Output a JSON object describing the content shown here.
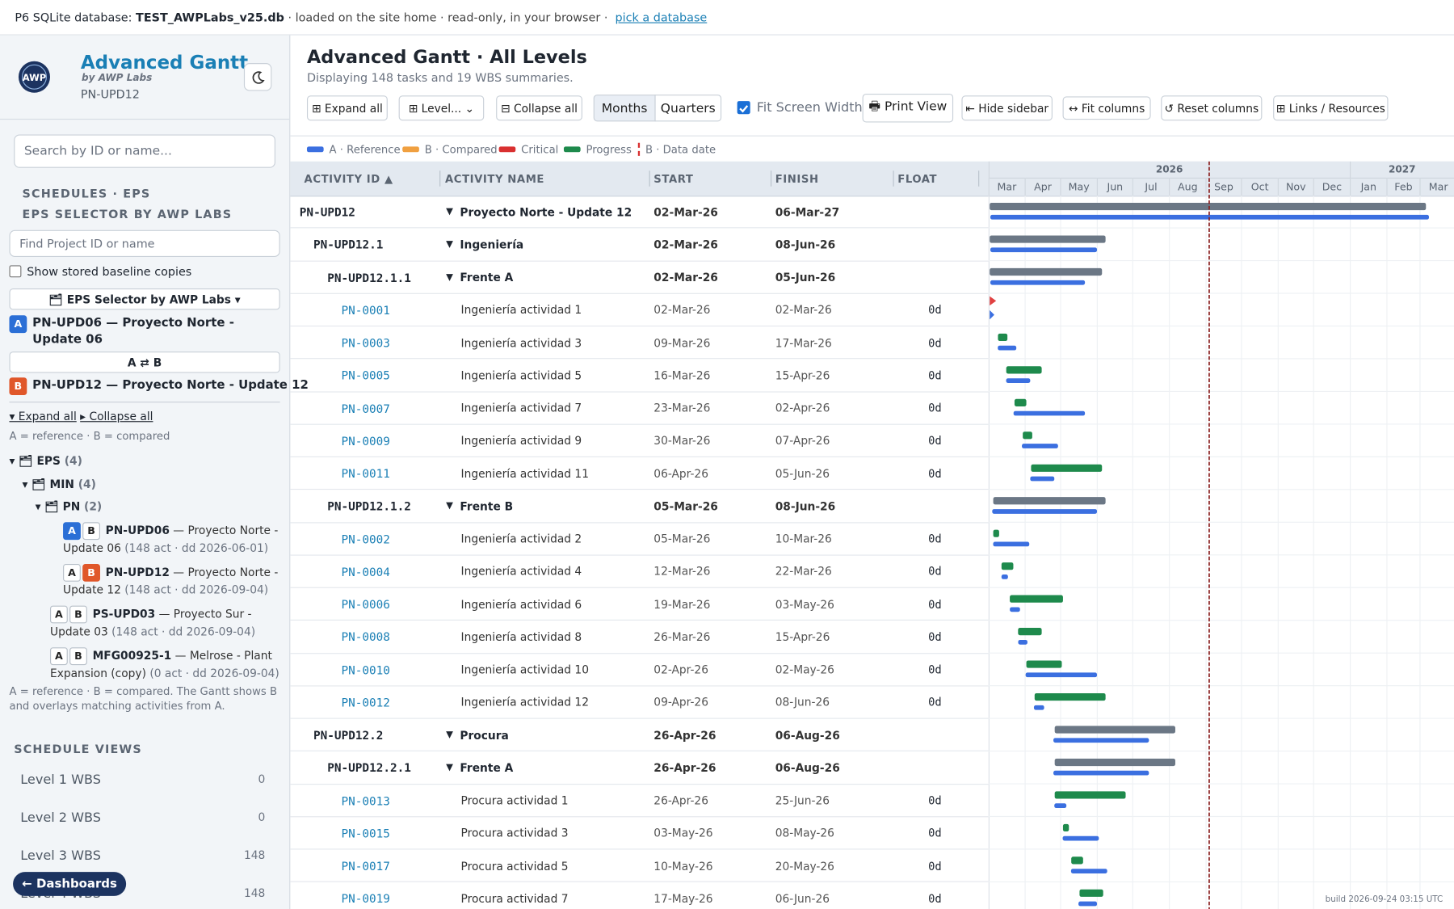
{
  "top_bar": {
    "prefix": "P6 SQLite database:",
    "db": "TEST_AWPLabs_v25.db",
    "suffix": "· loaded on the site home · read-only, in your browser ·",
    "link": "pick a database"
  },
  "sidebar": {
    "logo": "AWP",
    "title": "Advanced Gantt",
    "byline": "by AWP Labs",
    "project": "PN-UPD12",
    "search_placeholder": "Search by ID or name...",
    "section_schedules": "SCHEDULES · EPS",
    "section_selector": "EPS SELECTOR BY AWP LABS",
    "find_placeholder": "Find Project ID or name",
    "show_baseline": "Show stored baseline copies",
    "eps_button": "🗂 EPS Selector by AWP Labs ▾",
    "a_badge": "A",
    "a_text": "PN-UPD06 — Proyecto Norte - Update 06",
    "swap": "A ⇄ B",
    "b_badge": "B",
    "b_text": "PN-UPD12 — Proyecto Norte - Update 12",
    "expand_all": "▾ Expand all",
    "collapse_all": "▸ Collapse all",
    "ab_note": "A = reference · B = compared",
    "tree": [
      {
        "label": "▾ 🗂 EPS",
        "count": "(4)"
      },
      {
        "label": "▾ 🗂 MIN",
        "count": "(4)"
      },
      {
        "label": "▾ 🗂 PN",
        "count": "(2)"
      }
    ],
    "projects": [
      {
        "id": "PN-UPD06",
        "name": "— Proyecto Norte - Update 06",
        "meta": "(148 act · dd 2026-06-01)"
      },
      {
        "id": "PN-UPD12",
        "name": "— Proyecto Norte - Update 12",
        "meta": "(148 act · dd 2026-09-04)"
      },
      {
        "id": "PS-UPD03",
        "name": "— Proyecto Sur - Update 03",
        "meta": "(148 act · dd 2026-09-04)"
      },
      {
        "id": "MFG00925-1",
        "name": "— Melrose - Plant Expansion (copy)",
        "meta": "(0 act · dd 2026-09-04)"
      }
    ],
    "compare_note": "A = reference · B = compared. The Gantt shows B and overlays matching activities from A.",
    "views_title": "SCHEDULE VIEWS",
    "views": [
      {
        "label": "Level 1 WBS",
        "count": 0
      },
      {
        "label": "Level 2 WBS",
        "count": 0
      },
      {
        "label": "Level 3 WBS",
        "count": 148
      },
      {
        "label": "Level 4 WBS",
        "count": 148
      }
    ],
    "dashboards": "← Dashboards"
  },
  "main": {
    "title": "Advanced Gantt · All Levels",
    "subtitle": "Displaying 148 tasks and 19 WBS summaries.",
    "toolbar": {
      "expand_all": "⊞ Expand all",
      "level": "⊞ Level...",
      "collapse_all": "⊟ Collapse all",
      "months": "Months",
      "quarters": "Quarters",
      "fit_screen": "Fit Screen Width",
      "print": "🖶 Print View",
      "hide_sidebar": "⇤ Hide sidebar",
      "fit_columns": "↔ Fit columns",
      "reset_columns": "↺ Reset columns",
      "links": "⊞ Links / Resources"
    },
    "legend": {
      "reference": "A · Reference",
      "compared": "B · Compared",
      "critical": "Critical",
      "progress": "Progress",
      "data_date": "B · Data date"
    },
    "columns": {
      "id": "ACTIVITY ID ▲",
      "name": "ACTIVITY NAME",
      "start": "START",
      "finish": "FINISH",
      "float": "FLOAT"
    },
    "years": [
      "2026",
      "2027"
    ],
    "months": [
      "Mar",
      "Apr",
      "May",
      "Jun",
      "Jul",
      "Aug",
      "Sep",
      "Oct",
      "Nov",
      "Dec",
      "Jan",
      "Feb",
      "Mar"
    ],
    "rows": [
      {
        "id": "PN-UPD12",
        "name": "Proyecto Norte - Update 12",
        "start": "02-Mar-26",
        "finish": "06-Mar-27"
      },
      {
        "id": "PN-UPD12.1",
        "name": "Ingeniería",
        "start": "02-Mar-26",
        "finish": "08-Jun-26"
      },
      {
        "id": "PN-UPD12.1.1",
        "name": "Frente A",
        "start": "02-Mar-26",
        "finish": "05-Jun-26"
      },
      {
        "id": "PN-0001",
        "name": "Ingeniería actividad 1",
        "start": "02-Mar-26",
        "finish": "02-Mar-26",
        "float": "0d"
      },
      {
        "id": "PN-0003",
        "name": "Ingeniería actividad 3",
        "start": "09-Mar-26",
        "finish": "17-Mar-26",
        "float": "0d"
      },
      {
        "id": "PN-0005",
        "name": "Ingeniería actividad 5",
        "start": "16-Mar-26",
        "finish": "15-Apr-26",
        "float": "0d"
      },
      {
        "id": "PN-0007",
        "name": "Ingeniería actividad 7",
        "start": "23-Mar-26",
        "finish": "02-Apr-26",
        "float": "0d"
      },
      {
        "id": "PN-0009",
        "name": "Ingeniería actividad 9",
        "start": "30-Mar-26",
        "finish": "07-Apr-26",
        "float": "0d"
      },
      {
        "id": "PN-0011",
        "name": "Ingeniería actividad 11",
        "start": "06-Apr-26",
        "finish": "05-Jun-26",
        "float": "0d"
      },
      {
        "id": "PN-UPD12.1.2",
        "name": "Frente B",
        "start": "05-Mar-26",
        "finish": "08-Jun-26"
      },
      {
        "id": "PN-0002",
        "name": "Ingeniería actividad 2",
        "start": "05-Mar-26",
        "finish": "10-Mar-26",
        "float": "0d"
      },
      {
        "id": "PN-0004",
        "name": "Ingeniería actividad 4",
        "start": "12-Mar-26",
        "finish": "22-Mar-26",
        "float": "0d"
      },
      {
        "id": "PN-0006",
        "name": "Ingeniería actividad 6",
        "start": "19-Mar-26",
        "finish": "03-May-26",
        "float": "0d"
      },
      {
        "id": "PN-0008",
        "name": "Ingeniería actividad 8",
        "start": "26-Mar-26",
        "finish": "15-Apr-26",
        "float": "0d"
      },
      {
        "id": "PN-0010",
        "name": "Ingeniería actividad 10",
        "start": "02-Apr-26",
        "finish": "02-May-26",
        "float": "0d"
      },
      {
        "id": "PN-0012",
        "name": "Ingeniería actividad 12",
        "start": "09-Apr-26",
        "finish": "08-Jun-26",
        "float": "0d"
      },
      {
        "id": "PN-UPD12.2",
        "name": "Procura",
        "start": "26-Apr-26",
        "finish": "06-Aug-26"
      },
      {
        "id": "PN-UPD12.2.1",
        "name": "Frente A",
        "start": "26-Apr-26",
        "finish": "06-Aug-26"
      },
      {
        "id": "PN-0013",
        "name": "Procura actividad 1",
        "start": "26-Apr-26",
        "finish": "25-Jun-26",
        "float": "0d"
      },
      {
        "id": "PN-0015",
        "name": "Procura actividad 3",
        "start": "03-May-26",
        "finish": "08-May-26",
        "float": "0d"
      },
      {
        "id": "PN-0017",
        "name": "Procura actividad 5",
        "start": "10-May-26",
        "finish": "20-May-26",
        "float": "0d"
      },
      {
        "id": "PN-0019",
        "name": "Procura actividad 7",
        "start": "17-May-26",
        "finish": "06-Jun-26",
        "float": "0d"
      }
    ],
    "build": "build 2026-09-24 03:15 UTC"
  }
}
